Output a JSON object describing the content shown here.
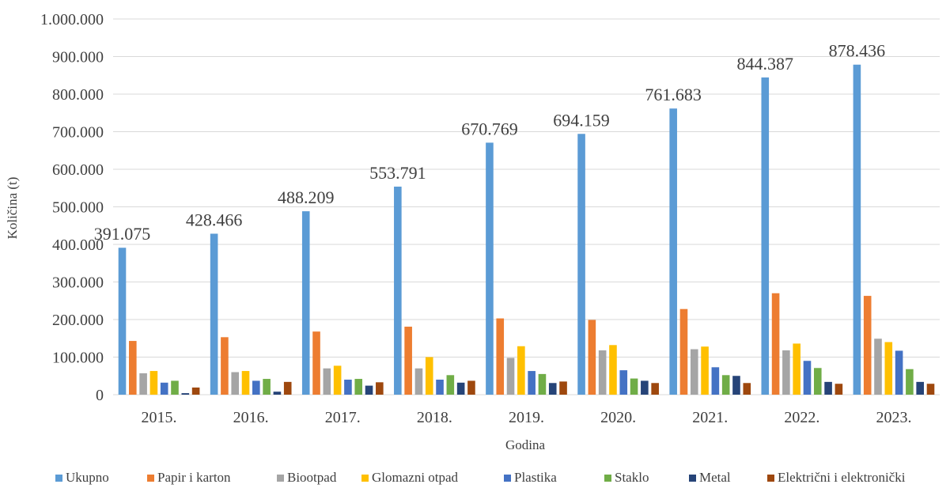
{
  "chart_data": {
    "type": "bar",
    "xlabel": "Godina",
    "ylabel": "Količina (t)",
    "ylim": [
      0,
      1000000
    ],
    "yticks": [
      0,
      100000,
      200000,
      300000,
      400000,
      500000,
      600000,
      700000,
      800000,
      900000,
      1000000
    ],
    "ytick_labels": [
      "0",
      "100.000",
      "200.000",
      "300.000",
      "400.000",
      "500.000",
      "600.000",
      "700.000",
      "800.000",
      "900.000",
      "1.000.000"
    ],
    "grid": true,
    "legend_position": "bottom",
    "categories": [
      "2015.",
      "2016.",
      "2017.",
      "2018.",
      "2019.",
      "2020.",
      "2021.",
      "2022.",
      "2023."
    ],
    "series": [
      {
        "name": "Ukupno",
        "color": "#5B9BD5",
        "values": [
          391075,
          428466,
          488209,
          553791,
          670769,
          694159,
          761683,
          844387,
          878436
        ],
        "labels": [
          "391.075",
          "428.466",
          "488.209",
          "553.791",
          "670.769",
          "694.159",
          "761.683",
          "844.387",
          "878.436"
        ]
      },
      {
        "name": "Papir i karton",
        "color": "#ED7D31",
        "values": [
          143000,
          153000,
          168000,
          181000,
          203000,
          199000,
          228000,
          270000,
          263000
        ]
      },
      {
        "name": "Biootpad",
        "color": "#A5A5A5",
        "values": [
          57000,
          60000,
          70000,
          70000,
          98000,
          118000,
          121000,
          118000,
          149000
        ]
      },
      {
        "name": "Glomazni otpad",
        "color": "#FFC000",
        "values": [
          63000,
          63000,
          77000,
          100000,
          129000,
          132000,
          128000,
          136000,
          140000
        ]
      },
      {
        "name": "Plastika",
        "color": "#4472C4",
        "values": [
          32000,
          37000,
          40000,
          40000,
          63000,
          65000,
          73000,
          90000,
          117000
        ]
      },
      {
        "name": "Staklo",
        "color": "#70AD47",
        "values": [
          37000,
          42000,
          42000,
          52000,
          55000,
          43000,
          52000,
          71000,
          68000
        ]
      },
      {
        "name": "Metal",
        "color": "#264478",
        "values": [
          4000,
          8000,
          24000,
          32000,
          31000,
          37000,
          50000,
          34000,
          34000
        ]
      },
      {
        "name": "Električni i elektronički",
        "color": "#9E480E",
        "values": [
          19000,
          34000,
          33000,
          37000,
          35000,
          31000,
          31000,
          29000,
          29000
        ]
      }
    ]
  }
}
